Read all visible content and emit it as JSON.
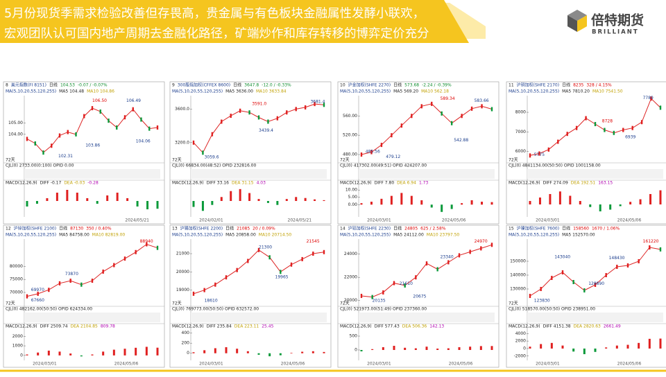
{
  "header": {
    "title_lines": [
      "5月份现货季需求检验改善但存畏高，贵金属与有色板块金融属性发酵小联欢，",
      "宏观团队认可国内地产周期去金融化路径，矿端炒作和库存转移的博弈定价充分"
    ]
  },
  "logo": {
    "name": "倍特期货",
    "en": "BRILLIANT"
  },
  "panels": [
    {
      "no": "8",
      "name": "美元指数(FI 8151)",
      "period": "日线",
      "last": "104.53",
      "change": "-0.07 / -0.07%",
      "ma_label": "MA(5,10,20,55,120,255)",
      "ma5": "MA5 104.48",
      "ma10": "MA10 104.86",
      "annotations": [
        "106.50",
        "106.49",
        "103.86",
        "104.06",
        "102.31"
      ],
      "ylim": [
        101.8,
        107.4
      ],
      "yticks": [
        {
          "value": 105,
          "label": "105.00"
        },
        {
          "value": 104,
          "label": "104.00"
        }
      ],
      "closes": [
        103.6,
        103.2,
        102.4,
        103.0,
        103.9,
        104.2,
        104.0,
        105.6,
        106.3,
        106.0,
        105.2,
        104.6,
        105.5,
        106.2,
        105.3,
        104.5,
        104.6
      ],
      "cjl": "CJL(0) 2733.00(0:100) OPID 0.00",
      "macd_label": "MACD(12,26,9)",
      "diff": "DIFF -0.17",
      "dea": "DEA -0.03",
      "macd_last": "-0.28",
      "macd": [
        -0.2,
        -0.1,
        0.1,
        0.3,
        0.4,
        0.3,
        0.1,
        -0.1,
        0.2,
        0.3,
        0.1,
        -0.2,
        -0.3,
        -0.28
      ],
      "macd_lim": [
        -0.5,
        0.5
      ],
      "dates": [
        "2024/05/21"
      ],
      "days": "72天"
    },
    {
      "no": "9",
      "name": "300股指加权(CFFEX 8600)",
      "period": "日线",
      "last": "3647.8",
      "change": "-12.0 / -0.33%",
      "ma_label": "MA(5,10,20,55,120,255)",
      "ma5": "MA5 3636.00",
      "ma10": "MA10 3633.84",
      "annotations": [
        "3591.0",
        "3681.4",
        "3439.4",
        "3059.6"
      ],
      "ylim": [
        3000,
        3760
      ],
      "yticks": [
        {
          "value": 3600,
          "label": "3600.0"
        },
        {
          "value": 3200,
          "label": "3200.0"
        }
      ],
      "closes": [
        3200,
        3080,
        3300,
        3450,
        3520,
        3580,
        3560,
        3500,
        3450,
        3490,
        3560,
        3600,
        3620,
        3660,
        3650
      ],
      "cjl": "CJL(0) 66834.00(48:52) OPID 232816.00",
      "macd_label": "MACD(12,26,9)",
      "diff": "DIFF 33.16",
      "dea": "DEA 31.15",
      "macd_last": "4.03",
      "macd": [
        -30,
        -50,
        -20,
        20,
        50,
        60,
        40,
        10,
        -10,
        -20,
        10,
        20,
        15,
        8,
        4
      ],
      "macd_lim": [
        -70,
        70
      ],
      "dates": [
        "2024/02/01",
        "2024/05/21"
      ],
      "days": "72天"
    },
    {
      "no": "10",
      "name": "沪金加权(SHFE 2270)",
      "period": "日线",
      "last": "573.68",
      "change": "-2.24 / -0.39%",
      "ma_label": "MA(5,10,20,55,120,255)",
      "ma5": "MA5 569.20",
      "ma10": "MA10 562.18",
      "annotations": [
        "589.34",
        "583.66",
        "542.88",
        "485.56",
        "479.12"
      ],
      "ylim": [
        470,
        602
      ],
      "yticks": [
        {
          "value": 560,
          "label": "560.00"
        },
        {
          "value": 520,
          "label": "520.00"
        },
        {
          "value": 480,
          "label": "480.00"
        }
      ],
      "closes": [
        480,
        485,
        500,
        520,
        540,
        560,
        580,
        585,
        565,
        545,
        560,
        575,
        580,
        574
      ],
      "cjl": "CJL(0) 417302.00(49:51) OPID 424207.00",
      "macd_label": "MACD(12,26,9)",
      "diff": "DIFF 7.80",
      "dea": "DEA 6.94",
      "macd_last": "1.73",
      "macd": [
        1,
        2,
        4,
        6,
        8,
        6,
        3,
        -2,
        -5,
        -3,
        1,
        3,
        2,
        1.73
      ],
      "macd_lim": [
        -7,
        12
      ],
      "macd_ticks": [
        {
          "value": 10,
          "label": "10.00"
        },
        {
          "value": 5,
          "label": "5.00"
        },
        {
          "value": 0,
          "label": "0.00"
        }
      ],
      "dates": [
        "2024/03/01",
        "2024/05/06"
      ],
      "days": "72天"
    },
    {
      "no": "11",
      "name": "沪铜加权(SHFE 2170)",
      "period": "日线",
      "last": "8235",
      "change": "328 / 4.15%",
      "ma_label": "MA(5,10,20,55,120,255)",
      "ma5": "MA5 7810.20",
      "ma10": "MA10 7541.50",
      "annotations": [
        "8728",
        "7789",
        "6939",
        "5775"
      ],
      "ylim": [
        5600,
        8850
      ],
      "yticks": [
        8000,
        7000,
        6000
      ],
      "closes": [
        5800,
        5900,
        6100,
        6500,
        6900,
        7200,
        7700,
        7400,
        7100,
        6950,
        7100,
        7200,
        7500,
        8700,
        8235
      ],
      "cjl": "CJL(0) 4841134.00(50:50) OPID 1001158.00",
      "macd_label": "MACD(12,26,9)",
      "diff": "DIFF 274.09",
      "dea": "DEA 192.51",
      "macd_last": "163.15",
      "macd": [
        40,
        80,
        120,
        150,
        100,
        40,
        -30,
        -80,
        -60,
        -20,
        30,
        60,
        120,
        163.15
      ],
      "macd_lim": [
        -120,
        200
      ],
      "dates": [
        "2024/03/01",
        "2024/05/06"
      ],
      "days": "72天"
    },
    {
      "no": "12",
      "name": "沪锌加权(SHFE 2100)",
      "period": "日线",
      "last": "87130",
      "change": "350 / 0.40%",
      "ma_label": "MA(5,10,20,55,120,255)",
      "ma5": "MA5 84758.00",
      "ma10": "MA10 82819.00",
      "annotations": [
        "88940",
        "73870",
        "69970",
        "67660"
      ],
      "ylim": [
        66000,
        90500
      ],
      "yticks": [
        80000,
        75000,
        70000
      ],
      "closes": [
        68500,
        69500,
        71000,
        73500,
        74500,
        73000,
        74500,
        78000,
        80500,
        83000,
        85500,
        88500,
        87130
      ],
      "cjl": "CJL(0) 482162.00(50:50) OPID 624334.00",
      "macd_label": "MACD(12,26,9)",
      "diff": "DIFF 2509.74",
      "dea": "DEA 2104.85",
      "macd_last": "809.78",
      "macd": [
        100,
        300,
        500,
        400,
        200,
        -100,
        100,
        400,
        600,
        700,
        800,
        900,
        809.78
      ],
      "macd_lim": [
        -300,
        2600
      ],
      "macd_ticks": [
        2000,
        1000,
        0
      ],
      "dates": [
        "2024/03/01",
        "2024/05/06"
      ],
      "days": "72天"
    },
    {
      "no": "13",
      "name": "沪锡加权(SHFE 2200)",
      "period": "日线",
      "last": "21085",
      "change": "20 / 0.09%",
      "ma_label": "MA(5,10,20,55,120,255)",
      "ma5": "MA5 20858.00",
      "ma10": "MA10 20714.50",
      "annotations": [
        "21545",
        "21300",
        "19965",
        "18610"
      ],
      "ylim": [
        18300,
        21800
      ],
      "yticks": [
        21000,
        20000,
        19000
      ],
      "closes": [
        18800,
        19000,
        19300,
        19700,
        20100,
        20600,
        21200,
        20800,
        20000,
        20400,
        20700,
        21000,
        21085
      ],
      "cjl": "CJL(0) 769773.00(50:50) OPID 632572.00",
      "macd_label": "MACD(12,26,9)",
      "diff": "DIFF 235.84",
      "dea": "DEA 223.11",
      "macd_last": "25.45",
      "macd": [
        20,
        60,
        100,
        120,
        90,
        40,
        -30,
        -60,
        -40,
        10,
        30,
        40,
        25.45
      ],
      "macd_lim": [
        -100,
        450
      ],
      "macd_ticks": [
        400,
        200,
        0
      ],
      "dates": [
        "2024/03/01",
        "2024/05/06"
      ],
      "days": "72天"
    },
    {
      "no": "14",
      "name": "沪铝加权(SHFE 2230)",
      "period": "日线",
      "last": "24805",
      "change": "625 / 2.58%",
      "ma_label": "MA(5,10,20,55,120,255)",
      "ma5": "MA5 24112.00",
      "ma10": "MA10 23797.50",
      "annotations": [
        "24970",
        "23340",
        "21610",
        "20675",
        "20135"
      ],
      "ylim": [
        19800,
        25300
      ],
      "yticks": [
        24000,
        22000,
        20000
      ],
      "closes": [
        20400,
        20300,
        20700,
        21500,
        21300,
        22000,
        23200,
        22700,
        23300,
        23900,
        24200,
        24500,
        24805
      ],
      "cjl": "CJL(0) 521973.00(51:49) OPID 237360.00",
      "macd_label": "MACD(12,26,9)",
      "diff": "DIFF 577.43",
      "dea": "DEA 506.36",
      "macd_last": "142.13",
      "macd": [
        -50,
        30,
        100,
        150,
        80,
        60,
        120,
        50,
        60,
        100,
        120,
        140,
        142.13
      ],
      "macd_lim": [
        -300,
        700
      ],
      "macd_ticks": [
        500,
        0
      ],
      "dates": [
        "2024/03/01",
        "2024/05/06"
      ],
      "days": "72天"
    },
    {
      "no": "15",
      "name": "沪镍加权(SHFE 7600)",
      "period": "日线",
      "last": "158560",
      "change": "1670 / 1.06%",
      "ma_label": "MA(5,10,20,55,120,255)",
      "ma5": "MA5 152570.00",
      "ma10": "",
      "annotations": [
        "161220",
        "148430",
        "143040",
        "128890",
        "123830"
      ],
      "ylim": [
        120000,
        166000
      ],
      "yticks": [
        150000,
        140000,
        130000
      ],
      "closes": [
        125000,
        130000,
        138000,
        142000,
        135000,
        129000,
        133000,
        140000,
        146000,
        147000,
        150000,
        160000,
        158560
      ],
      "cjl": "CJL(0) 518570.00(50:50) OPID 238951.00",
      "macd_label": "MACD(12,26,9)",
      "diff": "DIFF 4151.38",
      "dea": "DEA 2820.63",
      "macd_last": "2661.49",
      "macd": [
        500,
        1200,
        1500,
        800,
        -800,
        -1500,
        -900,
        300,
        800,
        1000,
        1500,
        2600,
        2661.49
      ],
      "macd_lim": [
        -2600,
        4800
      ],
      "macd_ticks": [
        4000,
        2000,
        0,
        -2000
      ],
      "dates": [
        "2024/03/01",
        "2024/05/06"
      ],
      "days": "72天"
    }
  ]
}
